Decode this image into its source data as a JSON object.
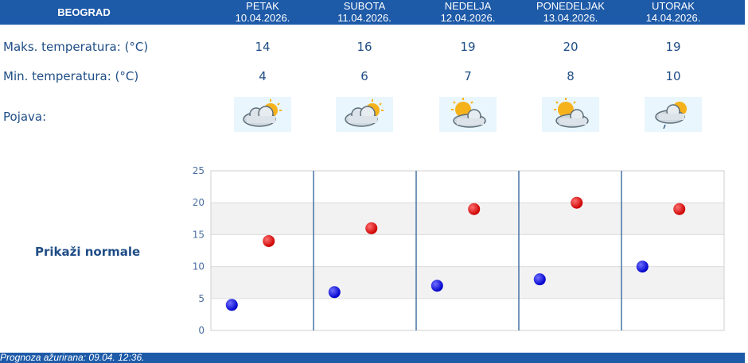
{
  "header": {
    "city": "BEOGRAD",
    "days": [
      {
        "name": "PETAK",
        "date": "10.04.2026."
      },
      {
        "name": "SUBOTA",
        "date": "11.04.2026."
      },
      {
        "name": "NEDELJA",
        "date": "12.04.2026."
      },
      {
        "name": "PONEDELJAK",
        "date": "13.04.2026."
      },
      {
        "name": "UTORAK",
        "date": "14.04.2026."
      }
    ]
  },
  "rows": {
    "max_label": "Maks. temperatura: (°C)",
    "min_label": "Min. temperatura: (°C)",
    "phenomenon_label": "Pojava:",
    "max_values": [
      "14",
      "16",
      "19",
      "20",
      "19"
    ],
    "min_values": [
      "4",
      "6",
      "7",
      "8",
      "10"
    ]
  },
  "icons": [
    "partly-cloudy-icon",
    "partly-cloudy-icon",
    "sun-cloud-icon",
    "sun-cloud-icon",
    "light-rain-icon"
  ],
  "normals_link": "Prikaži normale",
  "footer": "Prognoza ažurirana:  09.04. 12:36.",
  "colors": {
    "header_bg": "#1d5aa8",
    "text": "#1f4d86",
    "max_point": "#cc0000",
    "min_point": "#0000cc"
  },
  "chart_data": {
    "type": "scatter",
    "categories": [
      "PETAK",
      "SUBOTA",
      "NEDELJA",
      "PONEDELJAK",
      "UTORAK"
    ],
    "series": [
      {
        "values": [
          4,
          6,
          7,
          8,
          10
        ]
      },
      {
        "values": [
          14,
          16,
          19,
          20,
          19
        ]
      }
    ],
    "yticks": [
      "0",
      "5",
      "10",
      "15",
      "20",
      "25"
    ],
    "ylim": [
      0,
      25
    ],
    "grid": true
  }
}
